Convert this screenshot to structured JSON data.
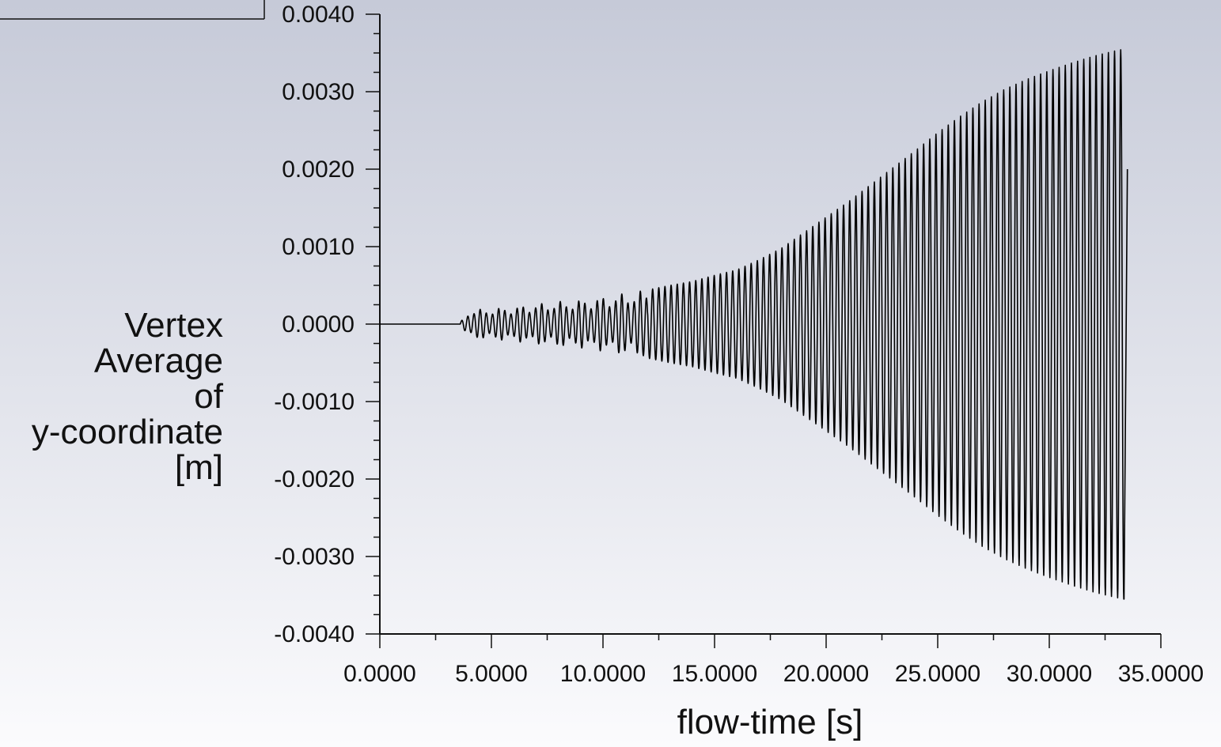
{
  "colors": {
    "background_top": "#c6cad8",
    "background_bottom": "#fbfbfd",
    "axis": "#111111",
    "series": "#000000"
  },
  "chart_data": {
    "type": "line",
    "title": "",
    "xlabel": "flow-time [s]",
    "ylabel_lines": [
      "Vertex",
      "Average",
      "of",
      "y-coordinate",
      "[m]"
    ],
    "xlim": [
      0,
      35
    ],
    "ylim": [
      -0.004,
      0.004
    ],
    "x_ticks": [
      {
        "value": 0,
        "label": "0.0000"
      },
      {
        "value": 5,
        "label": "5.0000"
      },
      {
        "value": 10,
        "label": "10.0000"
      },
      {
        "value": 15,
        "label": "15.0000"
      },
      {
        "value": 20,
        "label": "20.0000"
      },
      {
        "value": 25,
        "label": "25.0000"
      },
      {
        "value": 30,
        "label": "30.0000"
      },
      {
        "value": 35,
        "label": "35.0000"
      }
    ],
    "y_ticks": [
      {
        "value": 0.004,
        "label": "0.0040"
      },
      {
        "value": 0.003,
        "label": "0.0030"
      },
      {
        "value": 0.002,
        "label": "0.0020"
      },
      {
        "value": 0.001,
        "label": "0.0010"
      },
      {
        "value": 0.0,
        "label": "0.0000"
      },
      {
        "value": -0.001,
        "label": "-0.0010"
      },
      {
        "value": -0.002,
        "label": "-0.0020"
      },
      {
        "value": -0.003,
        "label": "-0.0030"
      },
      {
        "value": -0.004,
        "label": "-0.0040"
      }
    ],
    "x_minor_step": 2.5,
    "y_minor_step": 0.00025,
    "grid": false,
    "legend": "top-left (collapsed, no entries visible)",
    "series": [
      {
        "style": "oscillating",
        "x_start": 0,
        "x_end": 33.35,
        "oscillation_onset": 3.6,
        "period": 0.276,
        "final_value": 0.002,
        "amplitude_envelope": [
          [
            3.6,
            2e-05
          ],
          [
            4.0,
            0.00018
          ],
          [
            5.0,
            0.0002
          ],
          [
            6.0,
            0.00022
          ],
          [
            7.0,
            0.00026
          ],
          [
            8.0,
            0.00029
          ],
          [
            9.0,
            0.00031
          ],
          [
            10.0,
            0.00035
          ],
          [
            11.0,
            0.0004
          ],
          [
            12.0,
            0.00044
          ],
          [
            13.0,
            0.0005
          ],
          [
            14.0,
            0.00055
          ],
          [
            15.0,
            0.00063
          ],
          [
            16.0,
            0.0007
          ],
          [
            17.0,
            0.00083
          ],
          [
            18.0,
            0.00098
          ],
          [
            19.0,
            0.00118
          ],
          [
            20.0,
            0.00138
          ],
          [
            21.0,
            0.00158
          ],
          [
            22.0,
            0.0018
          ],
          [
            23.0,
            0.00202
          ],
          [
            24.0,
            0.00224
          ],
          [
            25.0,
            0.00247
          ],
          [
            26.0,
            0.00268
          ],
          [
            27.0,
            0.00287
          ],
          [
            28.0,
            0.00303
          ],
          [
            29.0,
            0.00316
          ],
          [
            30.0,
            0.00327
          ],
          [
            31.0,
            0.00337
          ],
          [
            32.0,
            0.00346
          ],
          [
            33.0,
            0.00353
          ],
          [
            33.35,
            0.00355
          ]
        ]
      }
    ]
  }
}
